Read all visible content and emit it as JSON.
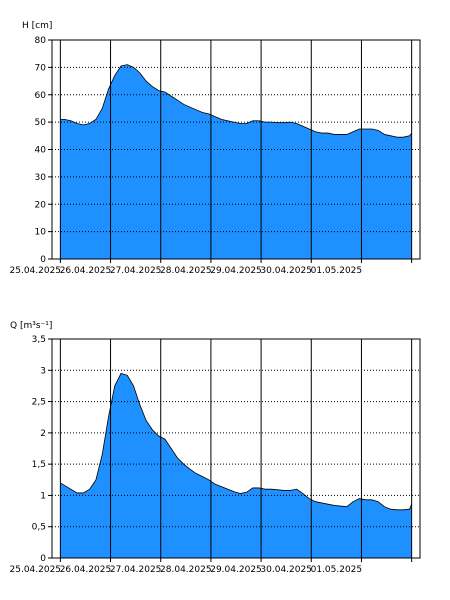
{
  "colors": {
    "area_fill": "#1e90ff",
    "area_stroke": "#000000",
    "frame": "#000000",
    "grid": "#000000",
    "background": "#ffffff"
  },
  "chart_data": [
    {
      "type": "area",
      "ylabel": "H [cm]",
      "ylim": [
        0,
        80
      ],
      "y_ticks": [
        0,
        10,
        20,
        30,
        40,
        50,
        60,
        70,
        80
      ],
      "y_tick_labels": [
        "0",
        "10",
        "20",
        "30",
        "40",
        "50",
        "60",
        "70",
        "80"
      ],
      "x_range": [
        "2025-04-24T20:00",
        "2025-05-02T04:00"
      ],
      "x_tick_labels": [
        "25.04.2025",
        "26.04.2025",
        "27.04.2025",
        "28.04.2025",
        "29.04.2025",
        "30.04.2025",
        "01.05.2025"
      ],
      "grid": {
        "vertical": "solid",
        "horizontal": "dotted"
      },
      "series": [
        {
          "x": [
            "2025-04-25T00:00",
            "2025-04-25T02:00",
            "2025-04-25T05:00",
            "2025-04-25T08:00",
            "2025-04-25T11:00",
            "2025-04-25T14:00",
            "2025-04-25T17:00",
            "2025-04-25T20:00",
            "2025-04-25T23:00",
            "2025-04-26T02:00",
            "2025-04-26T05:00",
            "2025-04-26T08:00",
            "2025-04-26T11:00",
            "2025-04-26T14:00",
            "2025-04-26T17:00",
            "2025-04-26T20:00",
            "2025-04-26T23:00",
            "2025-04-27T02:00",
            "2025-04-27T05:00",
            "2025-04-27T08:00",
            "2025-04-27T11:00",
            "2025-04-27T14:00",
            "2025-04-27T17:00",
            "2025-04-27T20:00",
            "2025-04-27T23:00",
            "2025-04-28T02:00",
            "2025-04-28T05:00",
            "2025-04-28T08:00",
            "2025-04-28T11:00",
            "2025-04-28T14:00",
            "2025-04-28T17:00",
            "2025-04-28T20:00",
            "2025-04-28T23:00",
            "2025-04-29T02:00",
            "2025-04-29T05:00",
            "2025-04-29T08:00",
            "2025-04-29T11:00",
            "2025-04-29T14:00",
            "2025-04-29T17:00",
            "2025-04-29T20:00",
            "2025-04-29T23:00",
            "2025-04-30T02:00",
            "2025-04-30T05:00",
            "2025-04-30T08:00",
            "2025-04-30T11:00",
            "2025-04-30T14:00",
            "2025-04-30T17:00",
            "2025-04-30T20:00",
            "2025-04-30T23:00",
            "2025-05-01T02:00",
            "2025-05-01T05:00",
            "2025-05-01T08:00",
            "2025-05-01T11:00",
            "2025-05-01T14:00",
            "2025-05-01T17:00",
            "2025-05-01T20:00",
            "2025-05-01T23:00",
            "2025-05-02T00:00"
          ],
          "values": [
            51,
            51,
            50.5,
            49.5,
            49,
            49.5,
            51,
            55,
            62,
            67,
            70.5,
            71,
            70,
            68,
            65,
            63,
            61.5,
            61,
            59.5,
            58,
            56.5,
            55.5,
            54.5,
            53.5,
            53,
            52,
            51,
            50.5,
            50,
            49.5,
            49.5,
            50.5,
            50.5,
            50,
            50,
            49.8,
            49.8,
            50,
            49.5,
            48.5,
            47.5,
            46.5,
            46,
            46,
            45.5,
            45.5,
            45.5,
            46.5,
            47.5,
            47.5,
            47.5,
            47,
            45.5,
            45,
            44.5,
            44.5,
            45,
            46
          ]
        }
      ]
    },
    {
      "type": "area",
      "ylabel": "Q [m³s⁻¹]",
      "ylim": [
        0,
        3.5
      ],
      "y_ticks": [
        0,
        0.5,
        1,
        1.5,
        2,
        2.5,
        3,
        3.5
      ],
      "y_tick_labels": [
        "0",
        "0,5",
        "1",
        "1,5",
        "2",
        "2,5",
        "3",
        "3,5"
      ],
      "x_range": [
        "2025-04-24T20:00",
        "2025-05-02T04:00"
      ],
      "x_tick_labels": [
        "25.04.2025",
        "26.04.2025",
        "27.04.2025",
        "28.04.2025",
        "29.04.2025",
        "30.04.2025",
        "01.05.2025"
      ],
      "grid": {
        "vertical": "solid",
        "horizontal": "dotted"
      },
      "series": [
        {
          "x": [
            "2025-04-25T00:00",
            "2025-04-25T02:00",
            "2025-04-25T05:00",
            "2025-04-25T08:00",
            "2025-04-25T11:00",
            "2025-04-25T14:00",
            "2025-04-25T17:00",
            "2025-04-25T20:00",
            "2025-04-25T23:00",
            "2025-04-26T02:00",
            "2025-04-26T05:00",
            "2025-04-26T08:00",
            "2025-04-26T11:00",
            "2025-04-26T14:00",
            "2025-04-26T17:00",
            "2025-04-26T20:00",
            "2025-04-26T23:00",
            "2025-04-27T02:00",
            "2025-04-27T05:00",
            "2025-04-27T08:00",
            "2025-04-27T11:00",
            "2025-04-27T14:00",
            "2025-04-27T17:00",
            "2025-04-27T20:00",
            "2025-04-27T23:00",
            "2025-04-28T02:00",
            "2025-04-28T05:00",
            "2025-04-28T08:00",
            "2025-04-28T11:00",
            "2025-04-28T14:00",
            "2025-04-28T17:00",
            "2025-04-28T20:00",
            "2025-04-28T23:00",
            "2025-04-29T02:00",
            "2025-04-29T05:00",
            "2025-04-29T08:00",
            "2025-04-29T11:00",
            "2025-04-29T14:00",
            "2025-04-29T17:00",
            "2025-04-29T20:00",
            "2025-04-29T23:00",
            "2025-04-30T02:00",
            "2025-04-30T05:00",
            "2025-04-30T08:00",
            "2025-04-30T11:00",
            "2025-04-30T14:00",
            "2025-04-30T17:00",
            "2025-04-30T20:00",
            "2025-04-30T23:00",
            "2025-05-01T02:00",
            "2025-05-01T05:00",
            "2025-05-01T08:00",
            "2025-05-01T11:00",
            "2025-05-01T14:00",
            "2025-05-01T17:00",
            "2025-05-01T20:00",
            "2025-05-01T23:00",
            "2025-05-02T00:00"
          ],
          "values": [
            1.2,
            1.16,
            1.1,
            1.04,
            1.04,
            1.1,
            1.25,
            1.65,
            2.25,
            2.75,
            2.95,
            2.92,
            2.75,
            2.45,
            2.2,
            2.05,
            1.95,
            1.9,
            1.75,
            1.6,
            1.5,
            1.42,
            1.35,
            1.3,
            1.25,
            1.18,
            1.14,
            1.1,
            1.06,
            1.03,
            1.05,
            1.12,
            1.12,
            1.1,
            1.1,
            1.09,
            1.08,
            1.08,
            1.1,
            1.03,
            0.95,
            0.9,
            0.88,
            0.86,
            0.84,
            0.83,
            0.82,
            0.9,
            0.95,
            0.93,
            0.93,
            0.9,
            0.82,
            0.78,
            0.77,
            0.77,
            0.78,
            0.86
          ]
        }
      ]
    }
  ]
}
